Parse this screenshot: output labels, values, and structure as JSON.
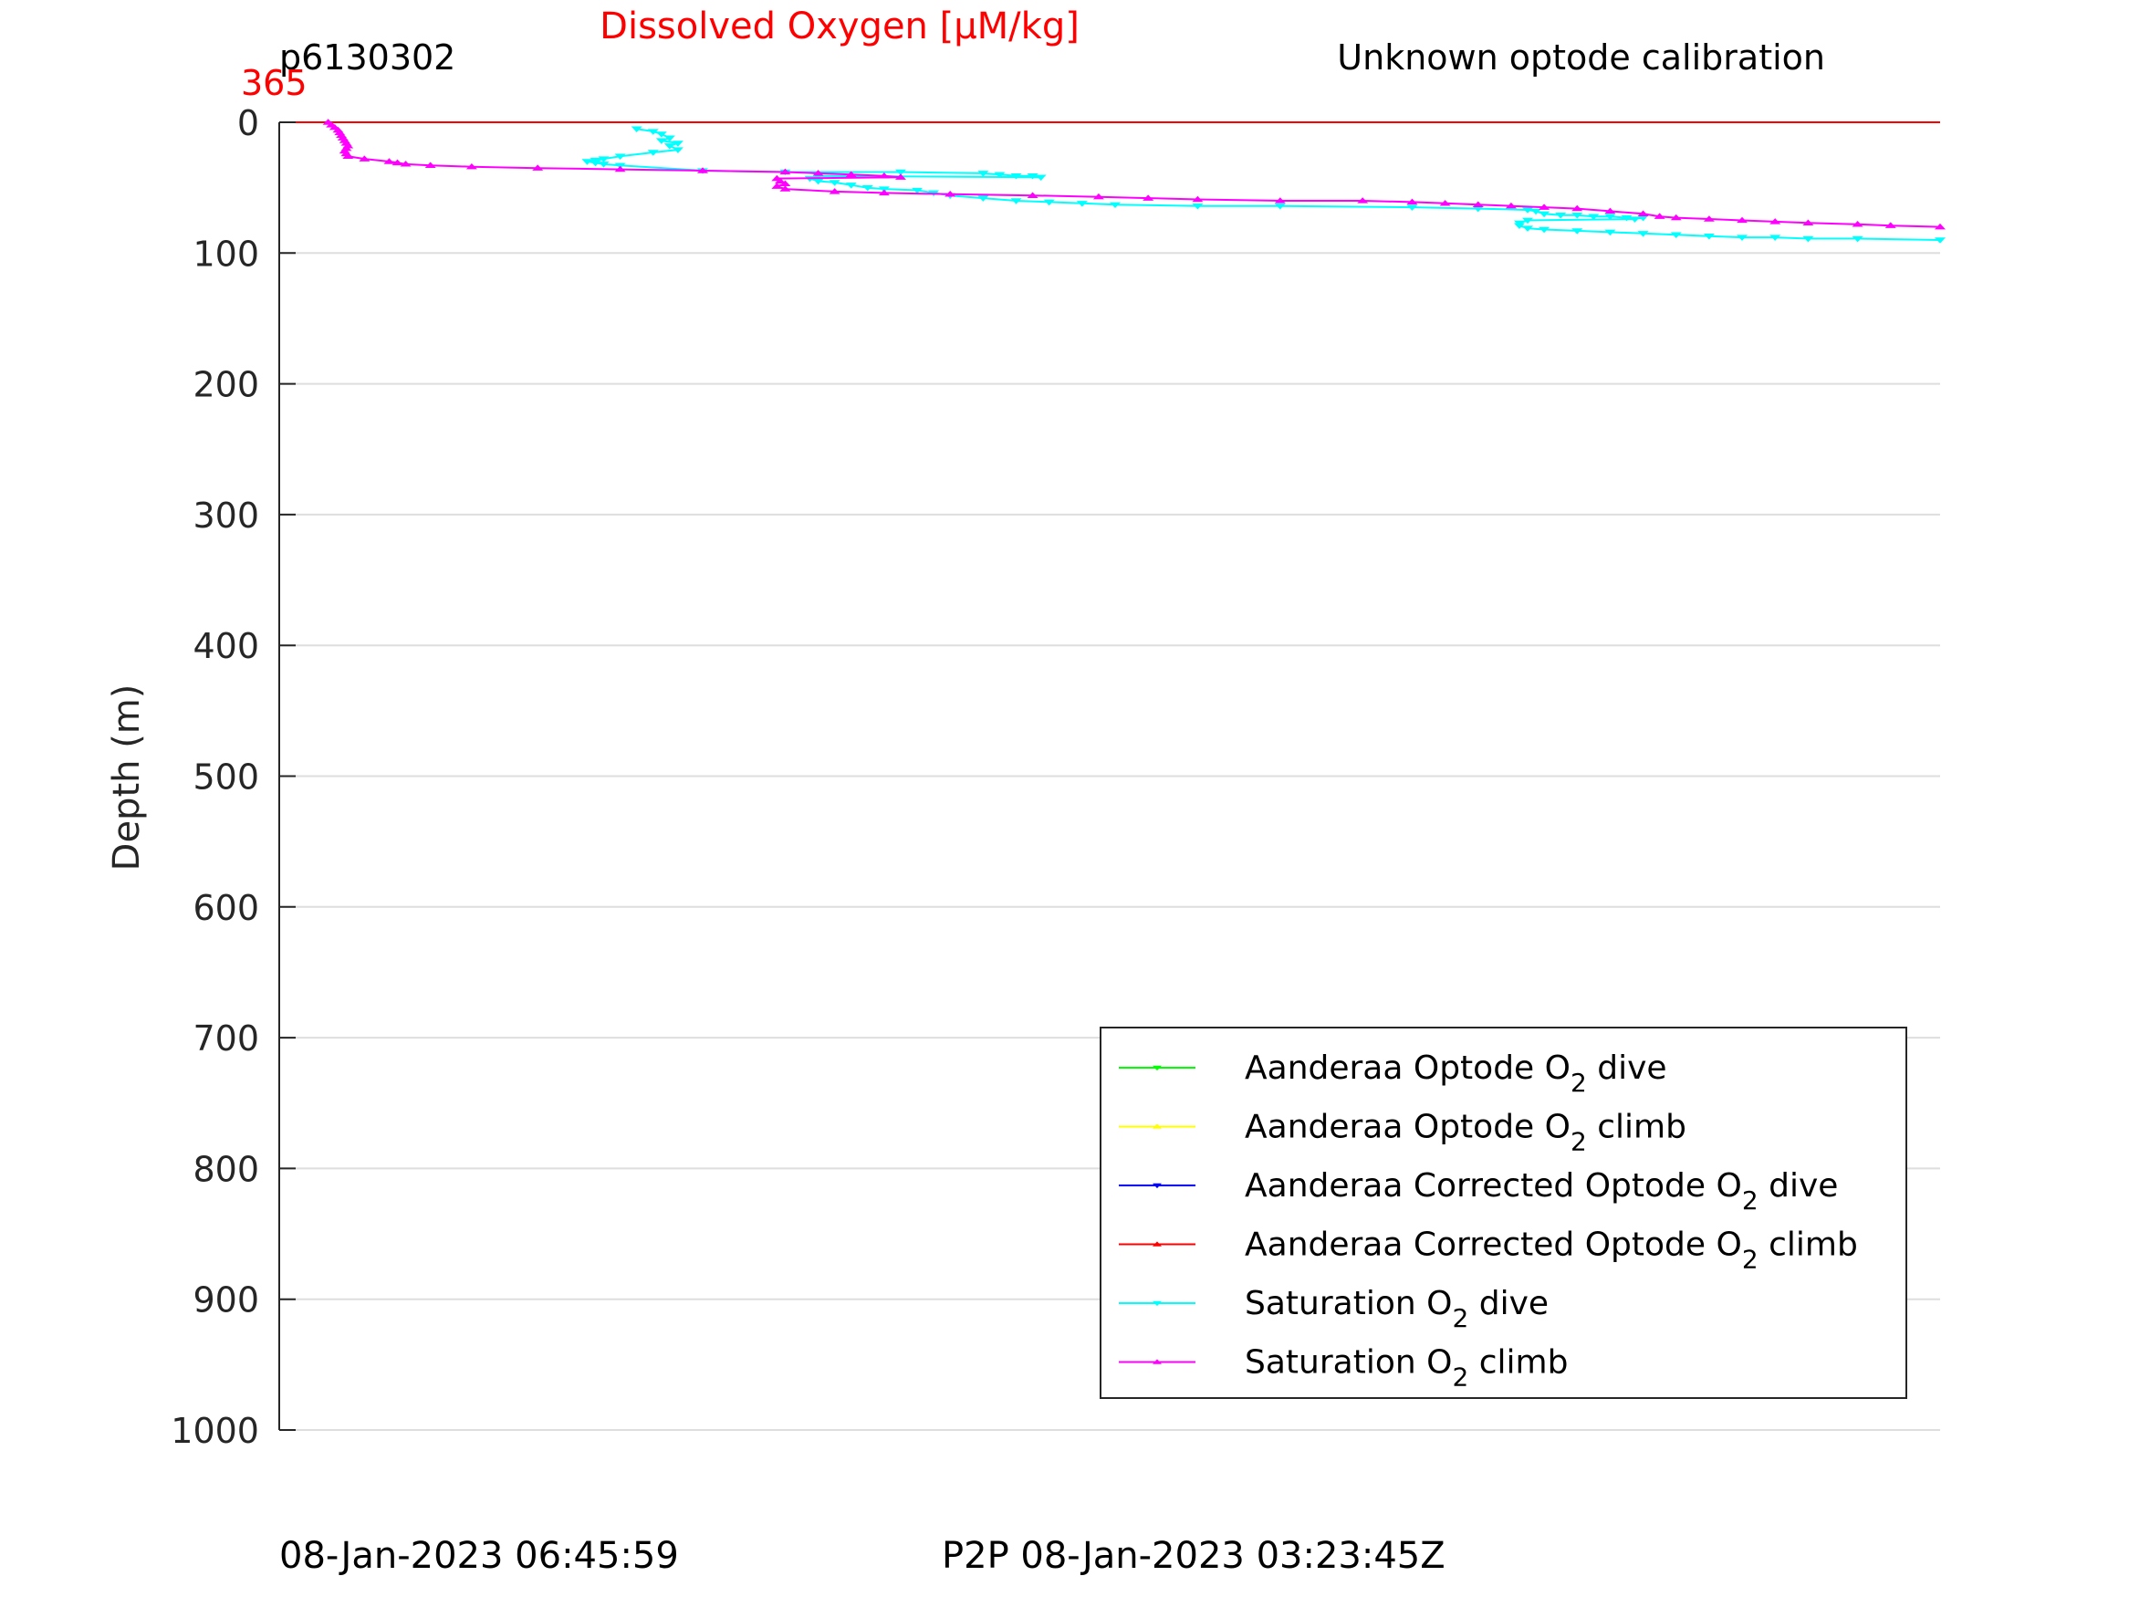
{
  "chart_data": {
    "type": "line",
    "title": "Dissolved Oxygen [μM/kg]",
    "top_left_label": "p6130302",
    "top_right_label": "Unknown optode calibration",
    "top_axis_tick": "365",
    "ylabel": "Depth (m)",
    "ylim": [
      0,
      1000
    ],
    "y_reversed": true,
    "y_ticks": [
      0,
      100,
      200,
      300,
      400,
      500,
      600,
      700,
      800,
      900,
      1000
    ],
    "grid": true,
    "legend_position": "bottom-right",
    "footer_left": "08-Jan-2023 06:45:59",
    "footer_center": "P2P 08-Jan-2023 03:23:45Z",
    "reference_line": {
      "depth": 0,
      "color": "#ff0000"
    },
    "series": [
      {
        "label_main": "Aanderaa Optode O",
        "label_sub": "2",
        "label_tail": " dive",
        "color": "#00ff00",
        "marker": "down",
        "points": []
      },
      {
        "label_main": "Aanderaa Optode O",
        "label_sub": "2",
        "label_tail": " climb",
        "color": "#ffff00",
        "marker": "up",
        "points": []
      },
      {
        "label_main": "Aanderaa Corrected Optode O",
        "label_sub": "2",
        "label_tail": " dive",
        "color": "#0000ff",
        "marker": "down",
        "points": []
      },
      {
        "label_main": "Aanderaa Corrected Optode O",
        "label_sub": "2",
        "label_tail": " climb",
        "color": "#ff0000",
        "marker": "up",
        "points": []
      },
      {
        "label_main": "Saturation O",
        "label_sub": "2",
        "label_tail": " dive",
        "color": "#00ffff",
        "marker": "down",
        "points": [
          [
            0.21,
            5
          ],
          [
            0.22,
            7
          ],
          [
            0.225,
            9
          ],
          [
            0.23,
            12
          ],
          [
            0.225,
            14
          ],
          [
            0.235,
            16
          ],
          [
            0.23,
            18
          ],
          [
            0.235,
            21
          ],
          [
            0.22,
            23
          ],
          [
            0.2,
            26
          ],
          [
            0.19,
            28
          ],
          [
            0.185,
            29
          ],
          [
            0.18,
            30
          ],
          [
            0.185,
            31
          ],
          [
            0.19,
            32
          ],
          [
            0.2,
            33
          ],
          [
            0.25,
            37
          ],
          [
            0.3,
            38
          ],
          [
            0.37,
            38
          ],
          [
            0.42,
            39
          ],
          [
            0.43,
            40
          ],
          [
            0.44,
            41
          ],
          [
            0.45,
            41
          ],
          [
            0.455,
            42
          ],
          [
            0.32,
            41
          ],
          [
            0.315,
            43
          ],
          [
            0.32,
            45
          ],
          [
            0.33,
            46
          ],
          [
            0.34,
            48
          ],
          [
            0.35,
            50
          ],
          [
            0.36,
            51
          ],
          [
            0.38,
            52
          ],
          [
            0.39,
            54
          ],
          [
            0.4,
            56
          ],
          [
            0.42,
            58
          ],
          [
            0.44,
            60
          ],
          [
            0.46,
            61
          ],
          [
            0.48,
            62
          ],
          [
            0.5,
            63
          ],
          [
            0.55,
            64
          ],
          [
            0.6,
            64
          ],
          [
            0.68,
            65
          ],
          [
            0.72,
            66
          ],
          [
            0.75,
            67
          ],
          [
            0.755,
            68
          ],
          [
            0.76,
            70
          ],
          [
            0.77,
            71
          ],
          [
            0.78,
            71
          ],
          [
            0.79,
            72
          ],
          [
            0.8,
            72
          ],
          [
            0.81,
            73
          ],
          [
            0.82,
            73
          ],
          [
            0.815,
            74
          ],
          [
            0.75,
            75
          ],
          [
            0.745,
            77
          ],
          [
            0.745,
            79
          ],
          [
            0.75,
            81
          ],
          [
            0.76,
            82
          ],
          [
            0.78,
            83
          ],
          [
            0.8,
            84
          ],
          [
            0.82,
            85
          ],
          [
            0.84,
            86
          ],
          [
            0.86,
            87
          ],
          [
            0.88,
            88
          ],
          [
            0.9,
            88
          ],
          [
            0.92,
            89
          ],
          [
            0.95,
            89
          ],
          [
            1.0,
            90
          ]
        ]
      },
      {
        "label_main": "Saturation O",
        "label_sub": "2",
        "label_tail": " climb",
        "color": "#ff00ff",
        "marker": "up",
        "points": [
          [
            0.023,
            0
          ],
          [
            0.025,
            2
          ],
          [
            0.027,
            4
          ],
          [
            0.029,
            6
          ],
          [
            0.03,
            8
          ],
          [
            0.031,
            10
          ],
          [
            0.032,
            12
          ],
          [
            0.033,
            14
          ],
          [
            0.034,
            16
          ],
          [
            0.035,
            18
          ],
          [
            0.034,
            20
          ],
          [
            0.033,
            22
          ],
          [
            0.034,
            24
          ],
          [
            0.035,
            26
          ],
          [
            0.045,
            28
          ],
          [
            0.06,
            30
          ],
          [
            0.065,
            31
          ],
          [
            0.07,
            32
          ],
          [
            0.085,
            33
          ],
          [
            0.11,
            34
          ],
          [
            0.15,
            35
          ],
          [
            0.2,
            36
          ],
          [
            0.25,
            37
          ],
          [
            0.3,
            38
          ],
          [
            0.32,
            39
          ],
          [
            0.34,
            40
          ],
          [
            0.36,
            41
          ],
          [
            0.37,
            42
          ],
          [
            0.295,
            43
          ],
          [
            0.297,
            45
          ],
          [
            0.3,
            47
          ],
          [
            0.295,
            49
          ],
          [
            0.3,
            51
          ],
          [
            0.33,
            53
          ],
          [
            0.36,
            54
          ],
          [
            0.4,
            55
          ],
          [
            0.45,
            56
          ],
          [
            0.49,
            57
          ],
          [
            0.52,
            58
          ],
          [
            0.55,
            59
          ],
          [
            0.6,
            60
          ],
          [
            0.65,
            60
          ],
          [
            0.68,
            61
          ],
          [
            0.7,
            62
          ],
          [
            0.72,
            63
          ],
          [
            0.74,
            64
          ],
          [
            0.76,
            65
          ],
          [
            0.78,
            66
          ],
          [
            0.8,
            68
          ],
          [
            0.82,
            70
          ],
          [
            0.83,
            72
          ],
          [
            0.84,
            73
          ],
          [
            0.86,
            74
          ],
          [
            0.88,
            75
          ],
          [
            0.9,
            76
          ],
          [
            0.92,
            77
          ],
          [
            0.95,
            78
          ],
          [
            0.97,
            79
          ],
          [
            1.0,
            80
          ]
        ]
      }
    ]
  }
}
